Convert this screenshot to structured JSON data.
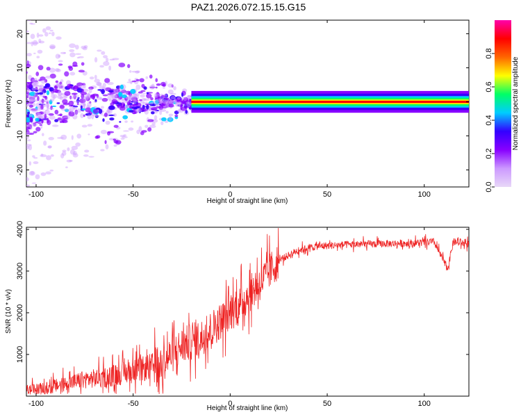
{
  "page": {
    "title": "PAZ1.2026.072.15.15.G15"
  },
  "chart_data": [
    {
      "type": "heatmap",
      "xlabel": "Height of straight line (km)",
      "ylabel": "Frequency (Hz)",
      "xlim": [
        -105,
        123
      ],
      "ylim": [
        -25,
        24
      ],
      "xticks": [
        -100,
        -50,
        0,
        50,
        100
      ],
      "yticks": [
        -20,
        -10,
        0,
        10,
        20
      ],
      "ridge": {
        "frequency_hz": 0,
        "start_height_km": -20,
        "end_height_km": 123
      },
      "colorbar": {
        "label": "Normalized spectral amplitude",
        "ticks": [
          "0.0",
          "0.2",
          "0.4",
          "0.6",
          "0.8"
        ],
        "range": [
          0,
          1
        ],
        "colors": [
          "#e8d8f8",
          "#cc99ff",
          "#8800ff",
          "#3300ff",
          "#00ccff",
          "#00ff66",
          "#ffff00",
          "#ff6600",
          "#ff0000",
          "#ff00aa"
        ]
      }
    },
    {
      "type": "line",
      "xlabel": "Height of straight line (km)",
      "ylabel": "SNR (10 * v/v)",
      "xlim": [
        -105,
        123
      ],
      "ylim": [
        0,
        4050
      ],
      "xticks": [
        -100,
        -50,
        0,
        50,
        100
      ],
      "yticks": [
        1000,
        2000,
        3000,
        4000
      ],
      "series": [
        {
          "name": "SNR",
          "color": "#ee2222",
          "x": [
            -105,
            -95,
            -85,
            -75,
            -65,
            -55,
            -45,
            -35,
            -25,
            -15,
            -5,
            5,
            15,
            25,
            35,
            45,
            55,
            65,
            75,
            85,
            95,
            105,
            112,
            115,
            123
          ],
          "y": [
            150,
            180,
            300,
            400,
            450,
            550,
            650,
            800,
            1200,
            1400,
            1800,
            2200,
            2700,
            3250,
            3500,
            3600,
            3620,
            3640,
            3650,
            3660,
            3670,
            3700,
            3050,
            3700,
            3650
          ]
        }
      ]
    }
  ]
}
